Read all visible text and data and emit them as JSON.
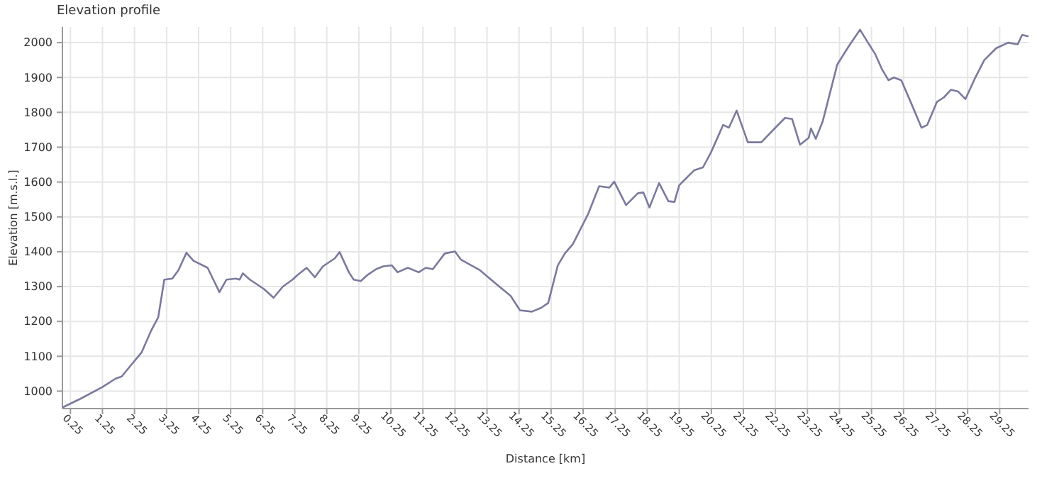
{
  "chart_data": {
    "type": "line",
    "title": "Elevation profile",
    "xlabel": "Distance [km]",
    "ylabel": "Elevation [m.s.l.]",
    "xlim": [
      0,
      30.15
    ],
    "ylim": [
      950,
      2045
    ],
    "xticks": [
      0.25,
      1.25,
      2.25,
      3.25,
      4.25,
      5.25,
      6.25,
      7.25,
      8.25,
      9.25,
      10.25,
      11.25,
      12.25,
      13.25,
      14.25,
      15.25,
      16.25,
      17.25,
      18.25,
      19.25,
      20.25,
      21.25,
      22.25,
      23.25,
      24.25,
      25.25,
      26.25,
      27.25,
      28.25,
      29.25
    ],
    "yticks": [
      1000,
      1100,
      1200,
      1300,
      1400,
      1500,
      1600,
      1700,
      1800,
      1900,
      2000
    ],
    "grid": true,
    "marker": "none",
    "line_style": "solid",
    "series": [
      {
        "color": "#7a7a9e",
        "x": [
          0,
          0.56,
          1.25,
          1.66,
          1.85,
          2.1,
          2.47,
          2.76,
          2.99,
          3.18,
          3.43,
          3.62,
          3.87,
          4.09,
          4.53,
          4.71,
          4.9,
          5.12,
          5.41,
          5.53,
          5.63,
          5.85,
          6.29,
          6.59,
          6.88,
          7.18,
          7.35,
          7.62,
          7.88,
          8.13,
          8.5,
          8.65,
          8.94,
          9.09,
          9.31,
          9.53,
          9.79,
          10.01,
          10.28,
          10.46,
          10.78,
          11.12,
          11.34,
          11.56,
          11.93,
          12.25,
          12.44,
          13.03,
          13.54,
          13.99,
          14.28,
          14.65,
          14.94,
          15.16,
          15.46,
          15.68,
          15.93,
          16.41,
          16.75,
          17.07,
          17.22,
          17.59,
          17.96,
          18.13,
          18.32,
          18.62,
          18.91,
          19.1,
          19.25,
          19.72,
          19.99,
          20.24,
          20.62,
          20.8,
          21.04,
          21.39,
          21.58,
          21.81,
          22.25,
          22.55,
          22.77,
          23.02,
          23.29,
          23.36,
          23.51,
          23.73,
          24.18,
          24.55,
          24.89,
          25.14,
          25.36,
          25.58,
          25.78,
          25.95,
          26.18,
          26.47,
          26.81,
          26.99,
          27.29,
          27.51,
          27.73,
          27.95,
          28.18,
          28.47,
          28.77,
          29.14,
          29.51,
          29.81,
          29.95,
          30.15
        ],
        "values": [
          953,
          978,
          1012,
          1036,
          1042,
          1070,
          1111,
          1172,
          1212,
          1320,
          1323,
          1347,
          1397,
          1374,
          1354,
          1320,
          1284,
          1320,
          1323,
          1320,
          1338,
          1320,
          1293,
          1268,
          1300,
          1320,
          1334,
          1354,
          1327,
          1358,
          1381,
          1399,
          1341,
          1320,
          1316,
          1334,
          1350,
          1358,
          1361,
          1341,
          1354,
          1341,
          1354,
          1350,
          1395,
          1401,
          1377,
          1347,
          1307,
          1273,
          1232,
          1228,
          1239,
          1253,
          1361,
          1395,
          1422,
          1509,
          1588,
          1584,
          1601,
          1534,
          1568,
          1570,
          1527,
          1597,
          1545,
          1543,
          1591,
          1634,
          1642,
          1685,
          1764,
          1756,
          1805,
          1714,
          1714,
          1714,
          1756,
          1784,
          1781,
          1707,
          1727,
          1754,
          1724,
          1775,
          1937,
          1991,
          2037,
          2000,
          1968,
          1923,
          1892,
          1900,
          1892,
          1830,
          1756,
          1764,
          1830,
          1843,
          1865,
          1860,
          1838,
          1896,
          1950,
          1984,
          2000,
          1995,
          2022,
          2018
        ]
      }
    ]
  }
}
